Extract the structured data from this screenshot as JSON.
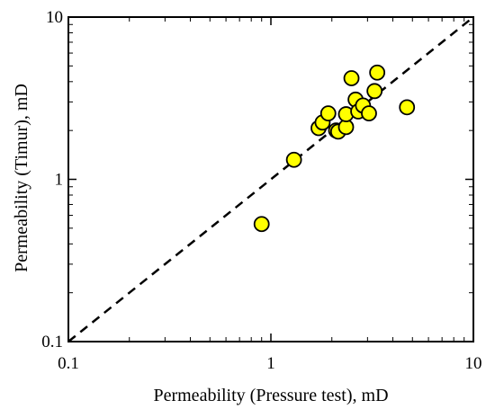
{
  "chart_data": {
    "type": "scatter",
    "title": "",
    "xlabel": "Permeability (Pressure test), mD",
    "ylabel": "Permeability (Timur), mD",
    "xscale": "log",
    "yscale": "log",
    "xlim": [
      0.1,
      10
    ],
    "ylim": [
      0.1,
      10
    ],
    "xticks": [
      0.1,
      1,
      10
    ],
    "yticks": [
      0.1,
      1,
      10
    ],
    "xtick_labels": [
      "0.1",
      "1",
      "10"
    ],
    "ytick_labels": [
      "0.1",
      "1",
      "10"
    ],
    "grid": false,
    "legend": "none",
    "reference_line": {
      "style": "dashed",
      "from": [
        0.1,
        0.1
      ],
      "to": [
        10,
        10
      ]
    },
    "marker": {
      "shape": "circle",
      "fill": "#ffff00",
      "edge": "#000000"
    },
    "points": [
      {
        "x": 0.9,
        "y": 0.53
      },
      {
        "x": 1.3,
        "y": 1.32
      },
      {
        "x": 1.72,
        "y": 2.07
      },
      {
        "x": 1.8,
        "y": 2.24
      },
      {
        "x": 1.92,
        "y": 2.55
      },
      {
        "x": 2.1,
        "y": 2.0
      },
      {
        "x": 2.15,
        "y": 1.97
      },
      {
        "x": 2.35,
        "y": 2.1
      },
      {
        "x": 2.35,
        "y": 2.52
      },
      {
        "x": 2.5,
        "y": 4.2
      },
      {
        "x": 2.62,
        "y": 3.1
      },
      {
        "x": 2.7,
        "y": 2.62
      },
      {
        "x": 2.85,
        "y": 2.85
      },
      {
        "x": 3.05,
        "y": 2.55
      },
      {
        "x": 3.25,
        "y": 3.5
      },
      {
        "x": 3.35,
        "y": 4.55
      },
      {
        "x": 4.7,
        "y": 2.78
      }
    ]
  }
}
